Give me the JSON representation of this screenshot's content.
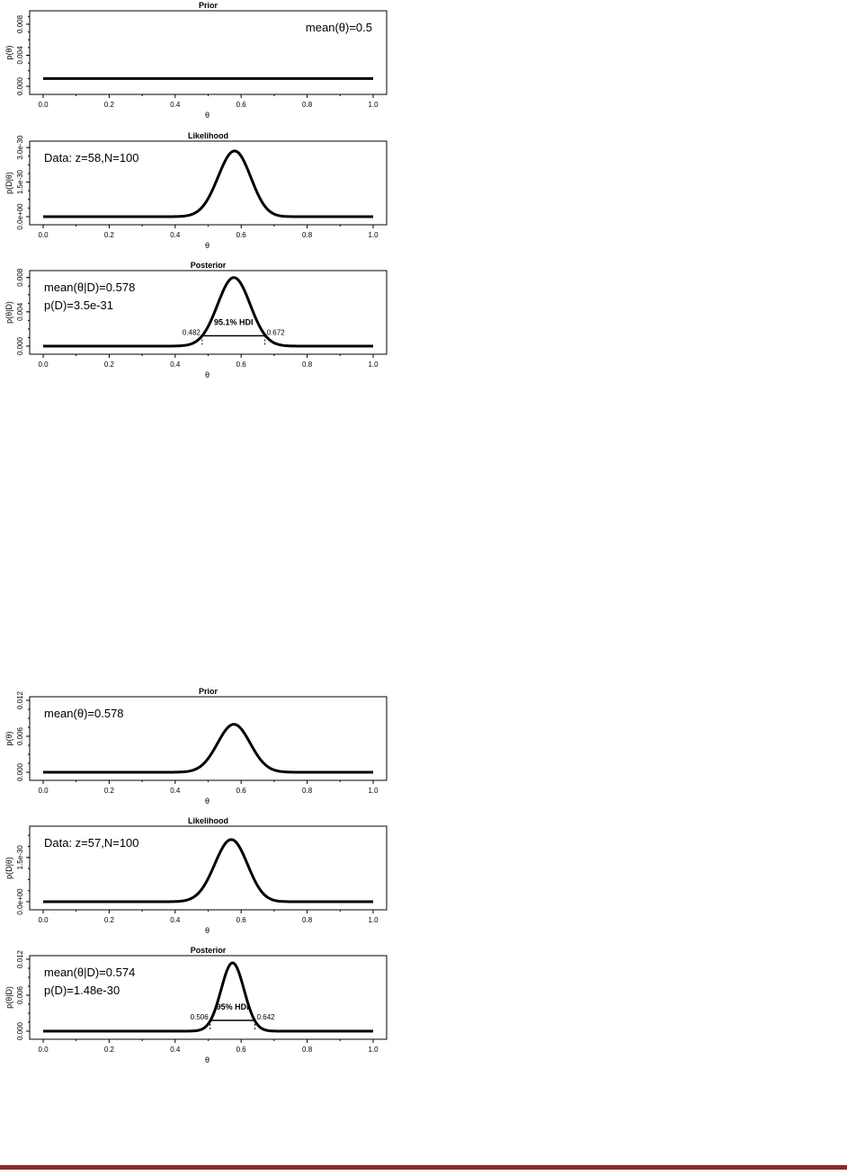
{
  "colors": {
    "line": "#000000",
    "background": "#ffffff",
    "footer_bar": "#8b2a2a"
  },
  "chart_data": [
    {
      "type": "line",
      "title": "Prior",
      "xlabel": "θ",
      "ylabel": "p(θ)",
      "xlim": [
        0,
        1
      ],
      "ylim": [
        0,
        0.0095
      ],
      "xticks": [
        "0.0",
        "0.2",
        "0.4",
        "0.6",
        "0.8",
        "1.0"
      ],
      "yticks": [
        {
          "value": 0,
          "label": "0.000"
        },
        {
          "value": 0.004,
          "label": "0.004"
        },
        {
          "value": 0.008,
          "label": "0.008"
        }
      ],
      "curve": {
        "kind": "uniform",
        "density": 0.001
      },
      "annotations": [
        {
          "text": "mean(θ)=0.5",
          "position": "top-right"
        }
      ]
    },
    {
      "type": "line",
      "title": "Likelihood",
      "xlabel": "θ",
      "ylabel": "p(D|θ)",
      "xlim": [
        0,
        1
      ],
      "ylim": [
        0,
        3.2e-30
      ],
      "xticks": [
        "0.0",
        "0.2",
        "0.4",
        "0.6",
        "0.8",
        "1.0"
      ],
      "yticks": [
        {
          "value": 0,
          "label": "0.0e+00"
        },
        {
          "value": 1.5e-30,
          "label": "1.5e-30"
        },
        {
          "value": 3e-30,
          "label": "3.0e-30"
        }
      ],
      "curve": {
        "kind": "likelihood",
        "z": 58,
        "N": 100
      },
      "annotations": [
        {
          "text": "Data: z=58,N=100",
          "position": "top-left"
        }
      ]
    },
    {
      "type": "line",
      "title": "Posterior",
      "xlabel": "θ",
      "ylabel": "p(θ|D)",
      "xlim": [
        0,
        1
      ],
      "ylim": [
        0,
        0.0086
      ],
      "xticks": [
        "0.0",
        "0.2",
        "0.4",
        "0.6",
        "0.8",
        "1.0"
      ],
      "yticks": [
        {
          "value": 0,
          "label": "0.000"
        },
        {
          "value": 0.004,
          "label": "0.004"
        },
        {
          "value": 0.008,
          "label": "0.008"
        }
      ],
      "curve": {
        "kind": "gaussian",
        "mean": 0.578,
        "sd": 0.0494,
        "peak": 0.008
      },
      "annotations": [
        {
          "text": "mean(θ|D)=0.578",
          "position": "top-left"
        },
        {
          "text": "p(D)=3.5e-31",
          "position": "top-left-2"
        }
      ],
      "hdi": {
        "label": "95.1% HDI",
        "low": 0.482,
        "high": 0.672,
        "low_label": "0.482",
        "high_label": "0.672",
        "height": 0.0012
      }
    },
    {
      "type": "line",
      "title": "Prior",
      "xlabel": "θ",
      "ylabel": "p(θ)",
      "xlim": [
        0,
        1
      ],
      "ylim": [
        0,
        0.0123
      ],
      "xticks": [
        "0.0",
        "0.2",
        "0.4",
        "0.6",
        "0.8",
        "1.0"
      ],
      "yticks": [
        {
          "value": 0,
          "label": "0.000"
        },
        {
          "value": 0.006,
          "label": "0.006"
        },
        {
          "value": 0.012,
          "label": "0.012"
        }
      ],
      "curve": {
        "kind": "gaussian",
        "mean": 0.578,
        "sd": 0.0494,
        "peak": 0.008
      },
      "annotations": [
        {
          "text": "mean(θ)=0.578",
          "position": "top-left"
        }
      ]
    },
    {
      "type": "line",
      "title": "Likelihood",
      "xlabel": "θ",
      "ylabel": "p(D|θ)",
      "xlim": [
        0,
        1
      ],
      "ylim": [
        0,
        2.5e-30
      ],
      "xticks": [
        "0.0",
        "0.2",
        "0.4",
        "0.6",
        "0.8",
        "1.0"
      ],
      "yticks": [
        {
          "value": 0,
          "label": "0.0e+00"
        },
        {
          "value": 1.5e-30,
          "label": "1.5e-30"
        }
      ],
      "curve": {
        "kind": "likelihood",
        "z": 57,
        "N": 100
      },
      "annotations": [
        {
          "text": "Data: z=57,N=100",
          "position": "top-left"
        }
      ]
    },
    {
      "type": "line",
      "title": "Posterior",
      "xlabel": "θ",
      "ylabel": "p(θ|D)",
      "xlim": [
        0,
        1
      ],
      "ylim": [
        0,
        0.0123
      ],
      "xticks": [
        "0.0",
        "0.2",
        "0.4",
        "0.6",
        "0.8",
        "1.0"
      ],
      "yticks": [
        {
          "value": 0,
          "label": "0.000"
        },
        {
          "value": 0.006,
          "label": "0.006"
        },
        {
          "value": 0.012,
          "label": "0.012"
        }
      ],
      "curve": {
        "kind": "gaussian",
        "mean": 0.574,
        "sd": 0.0348,
        "peak": 0.0114
      },
      "annotations": [
        {
          "text": "mean(θ|D)=0.574",
          "position": "top-left"
        },
        {
          "text": "p(D)=1.48e-30",
          "position": "top-left-2"
        }
      ],
      "hdi": {
        "label": "95% HDI",
        "low": 0.506,
        "high": 0.642,
        "low_label": "0.506",
        "high_label": "0.642",
        "height": 0.0018
      }
    }
  ]
}
